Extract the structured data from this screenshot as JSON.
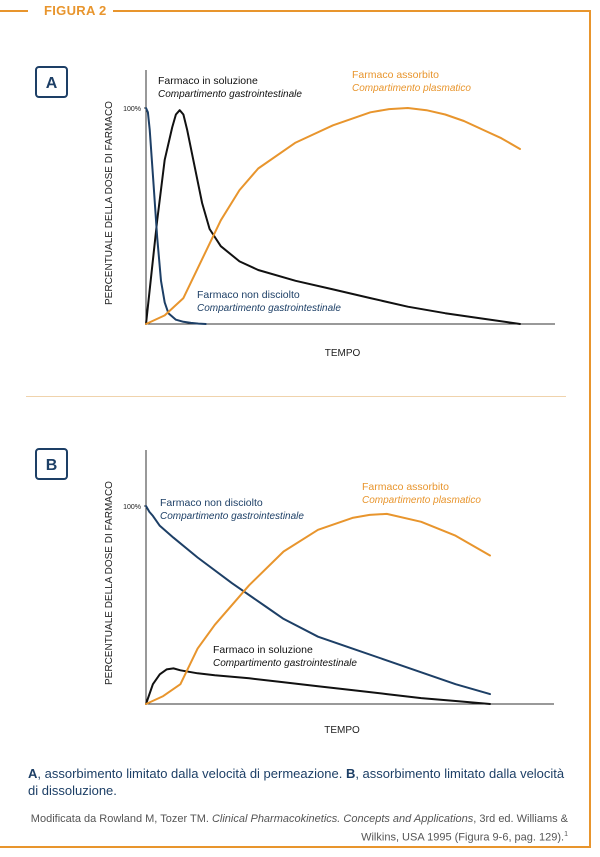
{
  "figure_label": "FIGURA 2",
  "colors": {
    "accent": "#e8952d",
    "navy": "#1d3f66",
    "black": "#111111"
  },
  "chart_data": [
    {
      "type": "line",
      "panel": "A",
      "xlabel": "TEMPO",
      "ylabel": "PERCENTUALE DELLA DOSE DI FARMACO",
      "ytick": "100%",
      "ylim": [
        0,
        100
      ],
      "xlim": [
        0,
        100
      ],
      "series": [
        {
          "key": "solution",
          "name": "Farmaco in soluzione",
          "sub": "Compartimento gastrointestinale",
          "color": "#111111",
          "x": [
            0,
            3,
            5,
            7,
            8,
            9,
            10,
            11,
            13,
            15,
            17,
            20,
            25,
            30,
            40,
            50,
            60,
            70,
            80,
            90,
            100
          ],
          "y": [
            0,
            48,
            76,
            91,
            97,
            99,
            97,
            90,
            73,
            56,
            44,
            36,
            29,
            25,
            20,
            16,
            12,
            8,
            5,
            2.5,
            0
          ]
        },
        {
          "key": "undissolved",
          "name": "Farmaco non disciolto",
          "sub": "Compartimento gastrointestinale",
          "color": "#1d3f66",
          "x": [
            0,
            0.5,
            1,
            2,
            3,
            4,
            5,
            6,
            8,
            10,
            12,
            14,
            16
          ],
          "y": [
            100,
            98,
            90,
            65,
            40,
            20,
            10,
            5,
            2,
            1,
            0.5,
            0.2,
            0
          ]
        },
        {
          "key": "absorbed",
          "name": "Farmaco assorbito",
          "sub": "Compartimento plasmatico",
          "color": "#e8952d",
          "x": [
            0,
            5,
            10,
            15,
            20,
            25,
            30,
            40,
            50,
            55,
            60,
            65,
            70,
            75,
            80,
            85,
            90,
            95,
            100
          ],
          "y": [
            0,
            4,
            12,
            30,
            48,
            62,
            72,
            84,
            92,
            95,
            98,
            99.5,
            100,
            99,
            97,
            94,
            90,
            86,
            81
          ]
        }
      ]
    },
    {
      "type": "line",
      "panel": "B",
      "xlabel": "TEMPO",
      "ylabel": "PERCENTUALE DELLA DOSE DI FARMACO",
      "ytick": "100%",
      "ylim": [
        0,
        100
      ],
      "xlim": [
        0,
        100
      ],
      "series": [
        {
          "key": "undissolved",
          "name": "Farmaco non disciolto",
          "sub": "Compartimento gastrointestinale",
          "color": "#1d3f66",
          "x": [
            0,
            1,
            2,
            4,
            8,
            15,
            25,
            35,
            40,
            50,
            60,
            70,
            80,
            90,
            100
          ],
          "y": [
            100,
            97,
            95,
            90,
            84,
            74,
            61,
            49,
            43,
            34,
            28,
            22,
            16,
            10,
            5
          ]
        },
        {
          "key": "solution",
          "name": "Farmaco in soluzione",
          "sub": "Compartimento gastrointestinale",
          "color": "#111111",
          "x": [
            0,
            2,
            4,
            6,
            8,
            10,
            15,
            20,
            30,
            40,
            50,
            60,
            70,
            80,
            90,
            100
          ],
          "y": [
            0,
            10,
            15,
            17.5,
            18,
            17,
            15.5,
            14.5,
            13,
            11,
            9,
            7,
            5,
            3,
            1.5,
            0
          ]
        },
        {
          "key": "absorbed",
          "name": "Farmaco assorbito",
          "sub": "Compartimento plasmatico",
          "color": "#e8952d",
          "x": [
            0,
            5,
            10,
            15,
            20,
            30,
            40,
            50,
            60,
            65,
            70,
            80,
            90,
            100
          ],
          "y": [
            0,
            4,
            10,
            28,
            40,
            60,
            77,
            88,
            94,
            95.5,
            96,
            92,
            85,
            75
          ]
        }
      ]
    }
  ],
  "caption": {
    "a_label": "A",
    "a_text": ", assorbimento limitato dalla velocità di permeazione. ",
    "b_label": "B",
    "b_text": ", assorbimento limitato dalla velocità di dissoluzione."
  },
  "source": {
    "pre": "Modificata da Rowland M, Tozer TM. ",
    "title": "Clinical Pharmacokinetics. Concepts and Applications",
    "post": ", 3rd ed. Williams & Wilkins, USA 1995 (Figura 9-6, pag. 129).",
    "ref": "1"
  }
}
